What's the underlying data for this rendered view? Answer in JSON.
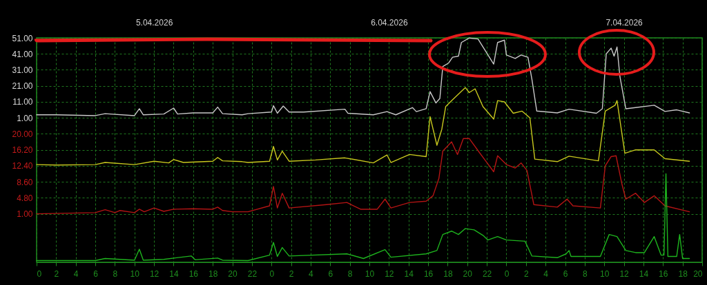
{
  "chart_data": {
    "type": "line",
    "x2lim": [
      "2026-04-05T00:00",
      "2026-04-07T20:00"
    ],
    "x2ticks": [
      {
        "value": "2026-04-05T12:00",
        "label": "5.04.2026"
      },
      {
        "value": "2026-04-06T12:00",
        "label": "6.04.2026"
      },
      {
        "value": "2026-04-07T12:00",
        "label": "7.04.2026"
      }
    ],
    "xlim": [
      "2026-04-05T00:00",
      "2026-04-07T20:00"
    ],
    "xticks": [
      {
        "value": "2026-04-05T00:00",
        "label": "0"
      },
      {
        "value": "2026-04-05T02:00",
        "label": "2"
      },
      {
        "value": "2026-04-05T04:00",
        "label": "4"
      },
      {
        "value": "2026-04-05T06:00",
        "label": "6"
      },
      {
        "value": "2026-04-05T08:00",
        "label": "8"
      },
      {
        "value": "2026-04-05T10:00",
        "label": "10"
      },
      {
        "value": "2026-04-05T12:00",
        "label": "12"
      },
      {
        "value": "2026-04-05T14:00",
        "label": "14"
      },
      {
        "value": "2026-04-05T16:00",
        "label": "16"
      },
      {
        "value": "2026-04-05T18:00",
        "label": "18"
      },
      {
        "value": "2026-04-05T20:00",
        "label": "20"
      },
      {
        "value": "2026-04-05T22:00",
        "label": "22"
      },
      {
        "value": "2026-04-06T00:00",
        "label": "0"
      },
      {
        "value": "2026-04-06T02:00",
        "label": "2"
      },
      {
        "value": "2026-04-06T04:00",
        "label": "4"
      },
      {
        "value": "2026-04-06T06:00",
        "label": "6"
      },
      {
        "value": "2026-04-06T08:00",
        "label": "8"
      },
      {
        "value": "2026-04-06T10:00",
        "label": "10"
      },
      {
        "value": "2026-04-06T12:00",
        "label": "12"
      },
      {
        "value": "2026-04-06T14:00",
        "label": "14"
      },
      {
        "value": "2026-04-06T16:00",
        "label": "16"
      },
      {
        "value": "2026-04-06T18:00",
        "label": "18"
      },
      {
        "value": "2026-04-06T20:00",
        "label": "20"
      },
      {
        "value": "2026-04-06T22:00",
        "label": "22"
      },
      {
        "value": "2026-04-07T00:00",
        "label": "0"
      },
      {
        "value": "2026-04-07T02:00",
        "label": "2"
      },
      {
        "value": "2026-04-07T04:00",
        "label": "4"
      },
      {
        "value": "2026-04-07T06:00",
        "label": "6"
      },
      {
        "value": "2026-04-07T08:00",
        "label": "8"
      },
      {
        "value": "2026-04-07T10:00",
        "label": "10"
      },
      {
        "value": "2026-04-07T12:00",
        "label": "12"
      },
      {
        "value": "2026-04-07T14:00",
        "label": "14"
      },
      {
        "value": "2026-04-07T16:00",
        "label": "16"
      },
      {
        "value": "2026-04-07T18:00",
        "label": "18"
      },
      {
        "value": "2026-04-07T20:00",
        "label": "20"
      }
    ],
    "ylim": [
      -89.3,
      51
    ],
    "yticks": [
      {
        "value": 1,
        "label": "1.00"
      },
      {
        "value": 11,
        "label": "11.00"
      },
      {
        "value": 21,
        "label": "21.00"
      },
      {
        "value": 31,
        "label": "31.00"
      },
      {
        "value": 41,
        "label": "41.00"
      },
      {
        "value": 51,
        "label": "51.00"
      }
    ],
    "y2lim": [
      -10.5,
      42.8
    ],
    "y2ticks": [
      {
        "value": 1,
        "label": "1.00"
      },
      {
        "value": 4.8,
        "label": "4.80"
      },
      {
        "value": 8.6,
        "label": "8.60"
      },
      {
        "value": 12.4,
        "label": "12.40"
      },
      {
        "value": 16.2,
        "label": "16.20"
      },
      {
        "value": 20,
        "label": "20.00"
      }
    ],
    "grid": true,
    "line_style": "solid",
    "series": [
      {
        "color": "#c8c8c8",
        "x": [
          "2026-04-05T00:00",
          "2026-04-05T02:00",
          "2026-04-05T06:00",
          "2026-04-05T07:00",
          "2026-04-05T10:00",
          "2026-04-05T10:30",
          "2026-04-05T10:54",
          "2026-04-05T13:00",
          "2026-04-05T14:00",
          "2026-04-05T14:24",
          "2026-04-05T16:00",
          "2026-04-05T18:00",
          "2026-04-05T18:30",
          "2026-04-05T19:00",
          "2026-04-05T21:00",
          "2026-04-05T21:36",
          "2026-04-06T00:00",
          "2026-04-06T00:12",
          "2026-04-06T00:36",
          "2026-04-06T01:12",
          "2026-04-06T01:48",
          "2026-04-06T03:18",
          "2026-04-06T07:30",
          "2026-04-06T07:48",
          "2026-04-06T10:24",
          "2026-04-06T11:48",
          "2026-04-06T12:42",
          "2026-04-06T14:24",
          "2026-04-06T14:48",
          "2026-04-06T15:48",
          "2026-04-06T16:12",
          "2026-04-06T16:48",
          "2026-04-06T17:12",
          "2026-04-06T17:30",
          "2026-04-06T18:06",
          "2026-04-06T18:30",
          "2026-04-06T19:06",
          "2026-04-06T19:24",
          "2026-04-06T20:12",
          "2026-04-06T21:06",
          "2026-04-06T21:54",
          "2026-04-06T22:42",
          "2026-04-06T23:06",
          "2026-04-06T23:48",
          "2026-04-07T00:00",
          "2026-04-07T00:54",
          "2026-04-07T01:30",
          "2026-04-07T02:12",
          "2026-04-07T02:36",
          "2026-04-07T03:06",
          "2026-04-07T05:12",
          "2026-04-07T06:24",
          "2026-04-07T09:12",
          "2026-04-07T09:48",
          "2026-04-07T10:12",
          "2026-04-07T10:42",
          "2026-04-07T11:00",
          "2026-04-07T11:18",
          "2026-04-07T11:36",
          "2026-04-07T12:12",
          "2026-04-07T13:12",
          "2026-04-07T15:06",
          "2026-04-07T16:12",
          "2026-04-07T17:24",
          "2026-04-07T18:42"
        ],
        "values": [
          2.9,
          2.9,
          2.4,
          3.6,
          2.4,
          6.7,
          2.9,
          3.4,
          7.1,
          3.4,
          4.1,
          4.1,
          7.7,
          3.6,
          2.9,
          3.6,
          4.6,
          8.6,
          3.9,
          8.4,
          4.6,
          4.6,
          6.4,
          3.9,
          2.9,
          4.9,
          2.9,
          7.4,
          4.9,
          6.7,
          17.4,
          10.3,
          13.1,
          33.1,
          35.3,
          38.9,
          39.6,
          48.1,
          50.9,
          50.3,
          42.4,
          34.6,
          48.1,
          49.6,
          40.3,
          38.1,
          40.3,
          38.9,
          25.3,
          5.3,
          4.1,
          6.4,
          3.9,
          6.7,
          41,
          44.6,
          39.6,
          45.3,
          26.7,
          6.7,
          7.4,
          8.9,
          5,
          6,
          4.1
        ]
      },
      {
        "color": "#c8c81e",
        "axis": "y2",
        "x": [
          "2026-04-05T00:00",
          "2026-04-05T02:00",
          "2026-04-05T06:00",
          "2026-04-05T07:00",
          "2026-04-05T10:00",
          "2026-04-05T12:00",
          "2026-04-05T13:30",
          "2026-04-05T14:00",
          "2026-04-05T15:00",
          "2026-04-05T18:00",
          "2026-04-05T18:30",
          "2026-04-05T19:00",
          "2026-04-05T21:00",
          "2026-04-05T21:36",
          "2026-04-05T23:48",
          "2026-04-06T00:12",
          "2026-04-06T00:36",
          "2026-04-06T01:06",
          "2026-04-06T01:48",
          "2026-04-06T04:30",
          "2026-04-06T07:30",
          "2026-04-06T10:24",
          "2026-04-06T11:48",
          "2026-04-06T12:12",
          "2026-04-06T14:06",
          "2026-04-06T15:48",
          "2026-04-06T16:12",
          "2026-04-06T16:54",
          "2026-04-06T17:24",
          "2026-04-06T17:48",
          "2026-04-06T18:24",
          "2026-04-06T19:48",
          "2026-04-06T20:12",
          "2026-04-06T20:48",
          "2026-04-06T21:36",
          "2026-04-06T22:42",
          "2026-04-06T23:06",
          "2026-04-06T23:48",
          "2026-04-07T00:42",
          "2026-04-07T01:36",
          "2026-04-07T02:24",
          "2026-04-07T02:54",
          "2026-04-07T05:12",
          "2026-04-07T06:24",
          "2026-04-07T09:24",
          "2026-04-07T10:06",
          "2026-04-07T11:06",
          "2026-04-07T11:18",
          "2026-04-07T12:06",
          "2026-04-07T13:12",
          "2026-04-07T15:06",
          "2026-04-07T16:12",
          "2026-04-07T18:42"
        ],
        "values": [
          12.7,
          12.6,
          12.7,
          13.2,
          12.7,
          13.5,
          13.1,
          13.9,
          13.2,
          13.5,
          14.4,
          13.6,
          13.4,
          13.2,
          13.5,
          17,
          13.8,
          15.9,
          13.5,
          13.8,
          14.3,
          13.1,
          15,
          13.2,
          15.1,
          14.6,
          24.1,
          17.3,
          21.1,
          26.5,
          27.9,
          31,
          29.8,
          30.7,
          26.5,
          23.5,
          27.9,
          27.6,
          24.9,
          25.4,
          23.8,
          14,
          13.4,
          14.7,
          13.6,
          25.4,
          26.8,
          27.9,
          15.4,
          16.2,
          16.2,
          14.1,
          13.5
        ]
      },
      {
        "color": "#b41414",
        "axis": "y2",
        "x": [
          "2026-04-05T00:00",
          "2026-04-05T06:00",
          "2026-04-05T07:00",
          "2026-04-05T08:00",
          "2026-04-05T08:30",
          "2026-04-05T10:00",
          "2026-04-05T10:30",
          "2026-04-05T11:00",
          "2026-04-05T12:00",
          "2026-04-05T13:00",
          "2026-04-05T14:00",
          "2026-04-05T16:00",
          "2026-04-05T18:00",
          "2026-04-05T18:30",
          "2026-04-05T19:00",
          "2026-04-05T20:00",
          "2026-04-05T21:36",
          "2026-04-05T23:48",
          "2026-04-06T00:12",
          "2026-04-06T00:36",
          "2026-04-06T01:06",
          "2026-04-06T01:48",
          "2026-04-06T05:36",
          "2026-04-06T07:42",
          "2026-04-06T09:06",
          "2026-04-06T10:48",
          "2026-04-06T11:36",
          "2026-04-06T12:12",
          "2026-04-06T14:06",
          "2026-04-06T15:48",
          "2026-04-06T16:30",
          "2026-04-06T17:06",
          "2026-04-06T17:30",
          "2026-04-06T18:24",
          "2026-04-06T19:00",
          "2026-04-06T19:36",
          "2026-04-06T20:12",
          "2026-04-06T21:12",
          "2026-04-06T21:54",
          "2026-04-06T22:42",
          "2026-04-06T23:06",
          "2026-04-07T00:00",
          "2026-04-07T00:54",
          "2026-04-07T01:30",
          "2026-04-07T02:06",
          "2026-04-07T02:48",
          "2026-04-07T05:12",
          "2026-04-07T06:12",
          "2026-04-07T06:48",
          "2026-04-07T09:36",
          "2026-04-07T10:06",
          "2026-04-07T10:42",
          "2026-04-07T11:12",
          "2026-04-07T11:48",
          "2026-04-07T12:12",
          "2026-04-07T13:12",
          "2026-04-07T14:06",
          "2026-04-07T15:06",
          "2026-04-07T16:12",
          "2026-04-07T18:42"
        ],
        "values": [
          1,
          1.3,
          2,
          1.3,
          1.8,
          1.3,
          2.1,
          1.5,
          2.4,
          1.6,
          2.1,
          2.2,
          2.1,
          2.6,
          1.8,
          1.5,
          1.5,
          2.9,
          7.5,
          2.4,
          5.9,
          2.4,
          3.2,
          3.7,
          2.1,
          2.1,
          4.5,
          2.4,
          3.7,
          4,
          5.3,
          9.4,
          15.9,
          18.1,
          15.1,
          18.9,
          18.9,
          15.7,
          13.5,
          11,
          14.8,
          12.7,
          11.9,
          13.1,
          11.3,
          3.2,
          2.6,
          4.5,
          2.9,
          2.4,
          12.4,
          14.6,
          14.8,
          8.1,
          4.5,
          5.9,
          3.7,
          5.3,
          2.9,
          1.5
        ]
      },
      {
        "color": "#1eb41e",
        "axis": "y2",
        "x": [
          "2026-04-05T00:00",
          "2026-04-05T06:00",
          "2026-04-05T07:00",
          "2026-04-05T10:00",
          "2026-04-05T10:30",
          "2026-04-05T10:54",
          "2026-04-05T13:00",
          "2026-04-05T15:48",
          "2026-04-05T16:12",
          "2026-04-05T18:30",
          "2026-04-05T19:00",
          "2026-04-05T21:36",
          "2026-04-05T23:48",
          "2026-04-06T00:12",
          "2026-04-06T00:36",
          "2026-04-06T01:06",
          "2026-04-06T01:48",
          "2026-04-06T07:42",
          "2026-04-06T09:24",
          "2026-04-06T11:36",
          "2026-04-06T12:12",
          "2026-04-06T15:48",
          "2026-04-06T16:54",
          "2026-04-06T17:30",
          "2026-04-06T18:24",
          "2026-04-06T19:06",
          "2026-04-06T19:48",
          "2026-04-06T20:42",
          "2026-04-06T21:36",
          "2026-04-06T22:06",
          "2026-04-06T23:06",
          "2026-04-07T00:00",
          "2026-04-07T01:54",
          "2026-04-07T02:36",
          "2026-04-07T05:12",
          "2026-04-07T06:06",
          "2026-04-07T06:24",
          "2026-04-07T06:36",
          "2026-04-07T09:36",
          "2026-04-07T10:30",
          "2026-04-07T11:18",
          "2026-04-07T12:12",
          "2026-04-07T13:12",
          "2026-04-07T14:06",
          "2026-04-07T15:06",
          "2026-04-07T15:48",
          "2026-04-07T16:06",
          "2026-04-07T16:18",
          "2026-04-07T16:30",
          "2026-04-07T17:24",
          "2026-04-07T17:42",
          "2026-04-07T18:00",
          "2026-04-07T18:42"
        ],
        "values": [
          -10.1,
          -10.1,
          -9.6,
          -10,
          -7.4,
          -10,
          -9.8,
          -9,
          -9.9,
          -9.5,
          -10,
          -10.1,
          -8.8,
          -5.8,
          -9.1,
          -7,
          -9,
          -8.5,
          -9.6,
          -7.5,
          -9.3,
          -8.5,
          -7.7,
          -3.9,
          -3.1,
          -3.9,
          -2.5,
          -2.8,
          -4.1,
          -5.2,
          -4.4,
          -5.2,
          -5.5,
          -9,
          -9.4,
          -8.5,
          -7.7,
          -9.1,
          -9.1,
          -3.9,
          -4.4,
          -7.7,
          -8.2,
          -8.2,
          -4.4,
          -8.8,
          -8.8,
          10.5,
          -9.1,
          -9.1,
          -3.9,
          -9.6,
          -9.6
        ]
      }
    ]
  }
}
